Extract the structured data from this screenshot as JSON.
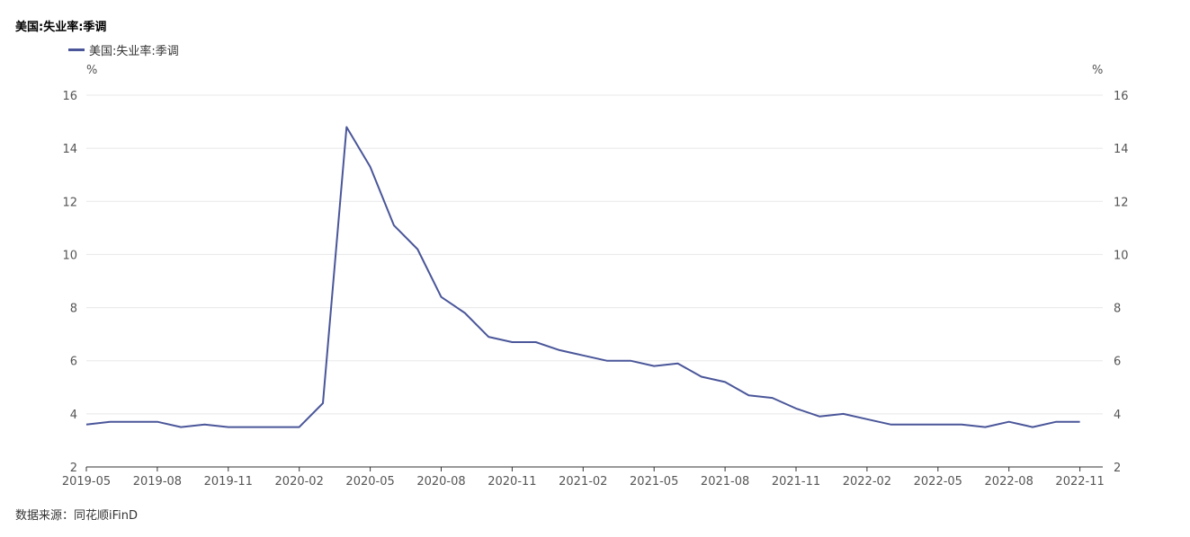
{
  "title": "美国:失业率:季调",
  "source": "数据来源：同花顺iFinD",
  "chart_data": {
    "type": "line",
    "title": "美国:失业率:季调",
    "series": [
      {
        "name": "美国:失业率:季调",
        "color": "#4a5699",
        "values": [
          3.6,
          3.7,
          3.7,
          3.7,
          3.5,
          3.6,
          3.5,
          3.5,
          3.5,
          3.5,
          4.4,
          14.8,
          13.3,
          11.1,
          10.2,
          8.4,
          7.8,
          6.9,
          6.7,
          6.7,
          6.4,
          6.2,
          6.0,
          6.0,
          5.8,
          5.9,
          5.4,
          5.2,
          4.7,
          4.6,
          4.2,
          3.9,
          4.0,
          3.8,
          3.6,
          3.6,
          3.6,
          3.6,
          3.5,
          3.7,
          3.5,
          3.7,
          3.7
        ]
      }
    ],
    "x": [
      "2019-05",
      "2019-06",
      "2019-07",
      "2019-08",
      "2019-09",
      "2019-10",
      "2019-11",
      "2019-12",
      "2020-01",
      "2020-02",
      "2020-03",
      "2020-04",
      "2020-05",
      "2020-06",
      "2020-07",
      "2020-08",
      "2020-09",
      "2020-10",
      "2020-11",
      "2020-12",
      "2021-01",
      "2021-02",
      "2021-03",
      "2021-04",
      "2021-05",
      "2021-06",
      "2021-07",
      "2021-08",
      "2021-09",
      "2021-10",
      "2021-11",
      "2021-12",
      "2022-01",
      "2022-02",
      "2022-03",
      "2022-04",
      "2022-05",
      "2022-06",
      "2022-07",
      "2022-08",
      "2022-09",
      "2022-10",
      "2022-11"
    ],
    "x_tick_labels": [
      "2019-05",
      "2019-08",
      "2019-11",
      "2020-02",
      "2020-05",
      "2020-08",
      "2020-11",
      "2021-02",
      "2021-05",
      "2021-08",
      "2021-11",
      "2022-02",
      "2022-05",
      "2022-08",
      "2022-11"
    ],
    "y_ticks": [
      2,
      4,
      6,
      8,
      10,
      12,
      14,
      16
    ],
    "ylim": [
      2,
      16
    ],
    "y_unit_left": "%",
    "y_unit_right": "%",
    "xlabel": "",
    "ylabel": "",
    "grid": true,
    "legend_position": "top-left"
  }
}
